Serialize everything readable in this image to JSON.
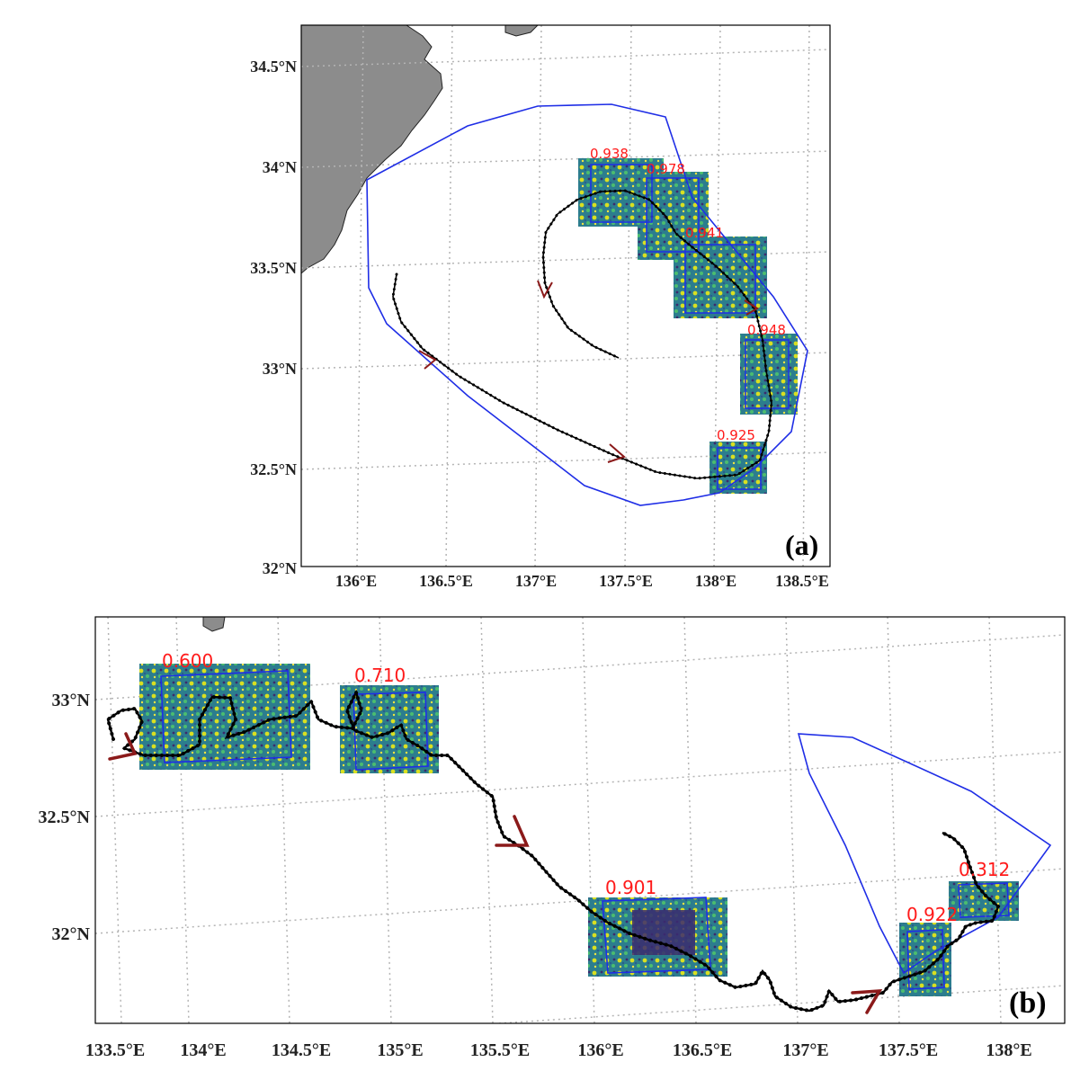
{
  "colors": {
    "land": "#8c8c8c",
    "boundary": "#1f2ee6",
    "track": "#000000",
    "arrow": "#8b1a1a",
    "score": "#ff1a1a",
    "grid": "#b4b4b4"
  },
  "panel_a": {
    "tag": "(a)",
    "lat_ticks": [
      "34.5°N",
      "34°N",
      "33.5°N",
      "33°N",
      "32.5°N",
      "32°N"
    ],
    "lon_ticks": [
      "136°E",
      "136.5°E",
      "137°E",
      "137.5°E",
      "138°E",
      "138.5°E"
    ],
    "scores": [
      "0.938",
      "0.978",
      "0.941",
      "0.948",
      "0.925"
    ]
  },
  "panel_b": {
    "tag": "(b)",
    "lat_ticks": [
      "33°N",
      "32.5°N",
      "32°N"
    ],
    "lon_ticks": [
      "133.5°E",
      "134°E",
      "134.5°E",
      "135°E",
      "135.5°E",
      "136°E",
      "136.5°E",
      "137°E",
      "137.5°E",
      "138°E"
    ],
    "scores": [
      "0.600",
      "0.710",
      "0.901",
      "0.922",
      "0.312"
    ]
  }
}
